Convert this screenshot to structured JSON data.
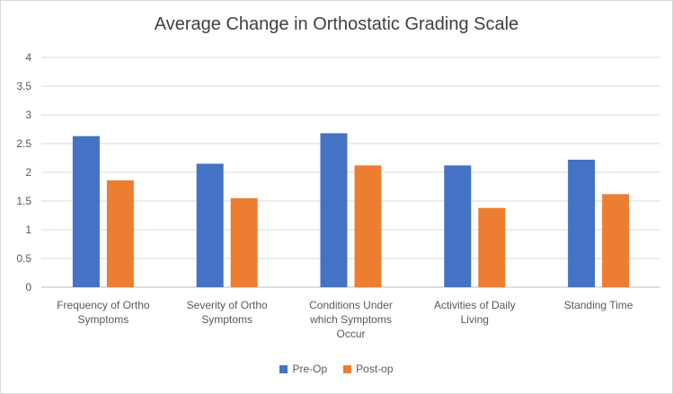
{
  "chart_data": {
    "type": "bar",
    "title": "Average Change in Orthostatic Grading Scale",
    "xlabel": "",
    "ylabel": "",
    "ylim": [
      0,
      4
    ],
    "yticks": [
      "0",
      "0.5",
      "1",
      "1.5",
      "2",
      "2.5",
      "3",
      "3.5",
      "4"
    ],
    "grid": true,
    "legend_position": "bottom",
    "categories": [
      [
        "Frequency of Ortho",
        "Symptoms"
      ],
      [
        "Severity of Ortho",
        "Symptoms"
      ],
      [
        "Conditions Under",
        "which Symptoms",
        "Occur"
      ],
      [
        "Activities of Daily",
        "Living"
      ],
      [
        "Standing Time"
      ]
    ],
    "series": [
      {
        "name": "Pre-Op",
        "color": "#4472C4",
        "values": [
          2.63,
          2.15,
          2.68,
          2.12,
          2.22
        ]
      },
      {
        "name": "Post-op",
        "color": "#ED7D31",
        "values": [
          1.86,
          1.55,
          2.12,
          1.38,
          1.62
        ]
      }
    ]
  }
}
